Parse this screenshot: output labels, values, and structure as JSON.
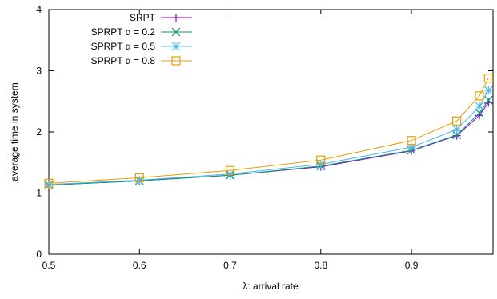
{
  "chart_data": {
    "type": "line",
    "xlabel": "λ:  arrival rate",
    "ylabel": "average time in system",
    "xlim": [
      0.5,
      0.99
    ],
    "ylim": [
      0,
      4
    ],
    "x_ticks": [
      "0.5",
      "0.6",
      "0.7",
      "0.8",
      "0.9"
    ],
    "y_ticks": [
      "0",
      "1",
      "2",
      "3",
      "4"
    ],
    "grid": false,
    "legend_position": "top-left",
    "x": [
      0.5,
      0.6,
      0.7,
      0.8,
      0.9,
      0.95,
      0.975,
      0.985
    ],
    "series": [
      {
        "name": "SRPT",
        "color": "#9400d3",
        "marker": "plus",
        "values": [
          1.13,
          1.2,
          1.29,
          1.43,
          1.69,
          1.94,
          2.27,
          2.48
        ]
      },
      {
        "name": "SPRPT α = 0.2",
        "color": "#009e73",
        "marker": "cross",
        "values": [
          1.13,
          1.2,
          1.29,
          1.44,
          1.7,
          1.95,
          2.31,
          2.52
        ]
      },
      {
        "name": "SPRPT α = 0.5",
        "color": "#56b4e9",
        "marker": "star",
        "values": [
          1.14,
          1.21,
          1.31,
          1.47,
          1.75,
          2.04,
          2.42,
          2.68
        ]
      },
      {
        "name": "SPRPT α = 0.8",
        "color": "#e69f00",
        "marker": "square",
        "values": [
          1.16,
          1.25,
          1.37,
          1.54,
          1.86,
          2.18,
          2.59,
          2.88
        ]
      }
    ]
  }
}
